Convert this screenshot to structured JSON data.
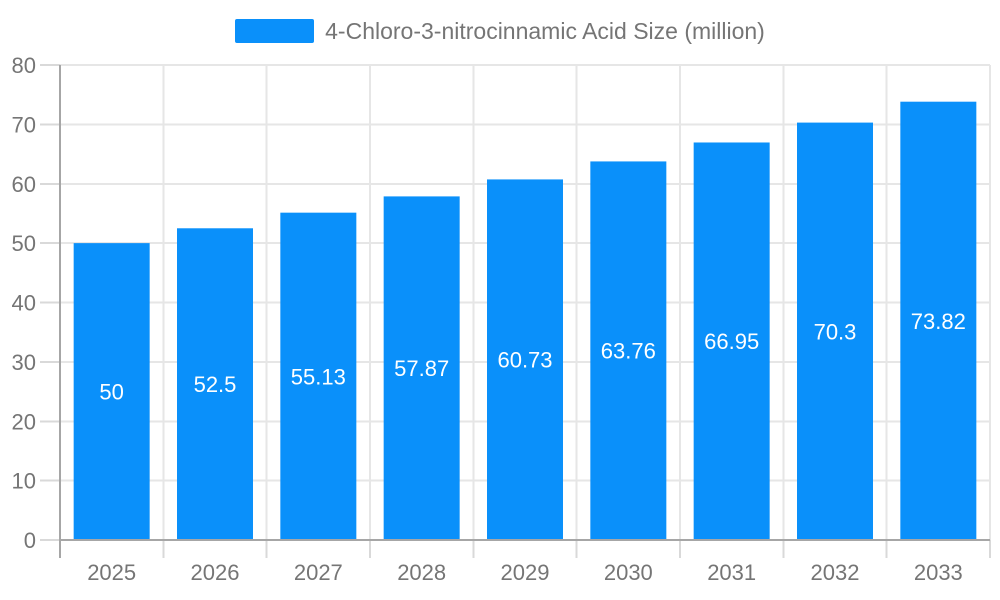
{
  "legend": {
    "label": "4-Chloro-3-nitrocinnamic Acid Size (million)"
  },
  "chart_data": {
    "type": "bar",
    "categories": [
      "2025",
      "2026",
      "2027",
      "2028",
      "2029",
      "2030",
      "2031",
      "2032",
      "2033"
    ],
    "series": [
      {
        "name": "4-Chloro-3-nitrocinnamic Acid Size (million)",
        "values": [
          50,
          52.5,
          55.13,
          57.87,
          60.73,
          63.76,
          66.95,
          70.3,
          73.82
        ]
      }
    ],
    "title": "",
    "xlabel": "",
    "ylabel": "",
    "ylim": [
      0,
      80
    ],
    "ytick_step": 10,
    "grid": true,
    "legend_position": "top-center",
    "value_label_position": "inside-center",
    "colors": {
      "bar": "#0a90fa",
      "grid": "#e6e6e6",
      "tick": "#d9d9d9",
      "axis": "#a6a6a6",
      "text": "#757575",
      "value_label": "#ffffff",
      "background": "#ffffff"
    }
  }
}
